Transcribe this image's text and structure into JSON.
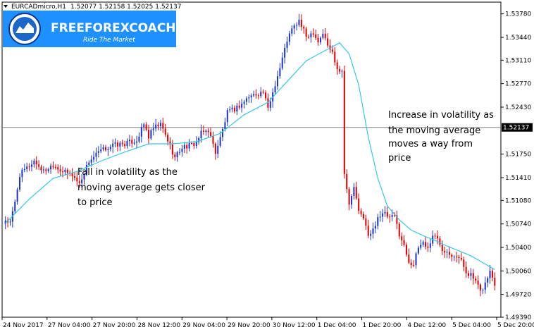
{
  "header": {
    "symbol": "EURCADmicro,H1",
    "ohlc": "1.52077 1.52158 1.52025 1.52137"
  },
  "logo": {
    "name": "FREEFOREXCOACH.com",
    "tagline": "Ride The Market",
    "bg_color": "#1e90ff"
  },
  "colors": {
    "bull": "#1a35d0",
    "bear": "#e00000",
    "ma": "#33c8e8",
    "price_line": "#808080"
  },
  "chart_data": {
    "type": "candlestick",
    "ylim": [
      1.4939,
      1.5395
    ],
    "y_ticks": [
      "1.53780",
      "1.53440",
      "1.53110",
      "1.52770",
      "1.52430",
      "1.51750",
      "1.51410",
      "1.51080",
      "1.50740",
      "1.50400",
      "1.50060",
      "1.49720",
      "1.49390"
    ],
    "x_ticks": [
      "24 Nov 2017",
      "27 Nov 04:00",
      "27 Nov 20:00",
      "28 Nov 12:00",
      "29 Nov 04:00",
      "29 Nov 20:00",
      "30 Nov 12:00",
      "1 Dec 04:00",
      "1 Dec 20:00",
      "4 Dec 12:00",
      "5 Dec 04:00",
      "5 Dec 20:00"
    ],
    "current_price": "1.52137",
    "segments": [
      [
        0,
        1.508
      ],
      [
        2,
        1.5075
      ],
      [
        4,
        1.5105
      ],
      [
        6,
        1.5145
      ],
      [
        9,
        1.5155
      ],
      [
        12,
        1.5165
      ],
      [
        16,
        1.515
      ],
      [
        20,
        1.516
      ],
      [
        24,
        1.515
      ],
      [
        28,
        1.5145
      ],
      [
        31,
        1.5132
      ],
      [
        35,
        1.5165
      ],
      [
        40,
        1.518
      ],
      [
        45,
        1.5188
      ],
      [
        50,
        1.519
      ],
      [
        55,
        1.5195
      ],
      [
        58,
        1.5218
      ],
      [
        60,
        1.52
      ],
      [
        62,
        1.5212
      ],
      [
        65,
        1.5218
      ],
      [
        68,
        1.5195
      ],
      [
        71,
        1.517
      ],
      [
        74,
        1.5185
      ],
      [
        78,
        1.5188
      ],
      [
        80,
        1.5192
      ],
      [
        82,
        1.5205
      ],
      [
        85,
        1.521
      ],
      [
        88,
        1.5178
      ],
      [
        90,
        1.5198
      ],
      [
        93,
        1.5235
      ],
      [
        96,
        1.524
      ],
      [
        99,
        1.5248
      ],
      [
        102,
        1.5258
      ],
      [
        105,
        1.5262
      ],
      [
        108,
        1.5265
      ],
      [
        110,
        1.524
      ],
      [
        112,
        1.5265
      ],
      [
        115,
        1.53
      ],
      [
        118,
        1.534
      ],
      [
        120,
        1.5355
      ],
      [
        123,
        1.5368
      ],
      [
        126,
        1.5345
      ],
      [
        129,
        1.5352
      ],
      [
        131,
        1.5338
      ],
      [
        133,
        1.535
      ],
      [
        135,
        1.5332
      ],
      [
        137,
        1.5322
      ],
      [
        139,
        1.53
      ],
      [
        141,
        1.5295
      ],
      [
        142,
        1.515
      ],
      [
        144,
        1.51
      ],
      [
        146,
        1.5128
      ],
      [
        148,
        1.509
      ],
      [
        150,
        1.5085
      ],
      [
        152,
        1.5055
      ],
      [
        154,
        1.5065
      ],
      [
        156,
        1.5085
      ],
      [
        159,
        1.5088
      ],
      [
        161,
        1.5082
      ],
      [
        163,
        1.5085
      ],
      [
        165,
        1.506
      ],
      [
        167,
        1.5042
      ],
      [
        169,
        1.502
      ],
      [
        171,
        1.5015
      ],
      [
        173,
        1.504
      ],
      [
        175,
        1.5048
      ],
      [
        177,
        1.5038
      ],
      [
        179,
        1.5058
      ],
      [
        181,
        1.5052
      ],
      [
        183,
        1.5038
      ],
      [
        185,
        1.5035
      ],
      [
        187,
        1.503
      ],
      [
        189,
        1.5028
      ],
      [
        191,
        1.502
      ],
      [
        193,
        1.5005
      ],
      [
        195,
        1.5
      ],
      [
        197,
        1.499
      ],
      [
        199,
        1.4975
      ],
      [
        201,
        1.4988
      ],
      [
        203,
        1.5005
      ],
      [
        205,
        1.4988
      ]
    ],
    "ma_points": [
      [
        0,
        1.5075
      ],
      [
        10,
        1.511
      ],
      [
        20,
        1.514
      ],
      [
        30,
        1.515
      ],
      [
        40,
        1.5165
      ],
      [
        50,
        1.5178
      ],
      [
        60,
        1.519
      ],
      [
        70,
        1.519
      ],
      [
        80,
        1.5193
      ],
      [
        90,
        1.5205
      ],
      [
        100,
        1.5232
      ],
      [
        110,
        1.525
      ],
      [
        118,
        1.528
      ],
      [
        126,
        1.531
      ],
      [
        134,
        1.5325
      ],
      [
        140,
        1.5336
      ],
      [
        144,
        1.532
      ],
      [
        148,
        1.5275
      ],
      [
        152,
        1.52
      ],
      [
        156,
        1.514
      ],
      [
        160,
        1.51
      ],
      [
        165,
        1.508
      ],
      [
        170,
        1.5065
      ],
      [
        175,
        1.5057
      ],
      [
        180,
        1.505
      ],
      [
        185,
        1.5042
      ],
      [
        190,
        1.5035
      ],
      [
        195,
        1.5028
      ],
      [
        200,
        1.5018
      ],
      [
        205,
        1.5008
      ]
    ],
    "annotations": [
      {
        "lines": [
          "Fall in volatility as the",
          "moving average gets closer",
          "to price"
        ]
      },
      {
        "lines": [
          "Increase in volatility as",
          "the moving average",
          "moves a way from",
          "price"
        ]
      }
    ]
  }
}
